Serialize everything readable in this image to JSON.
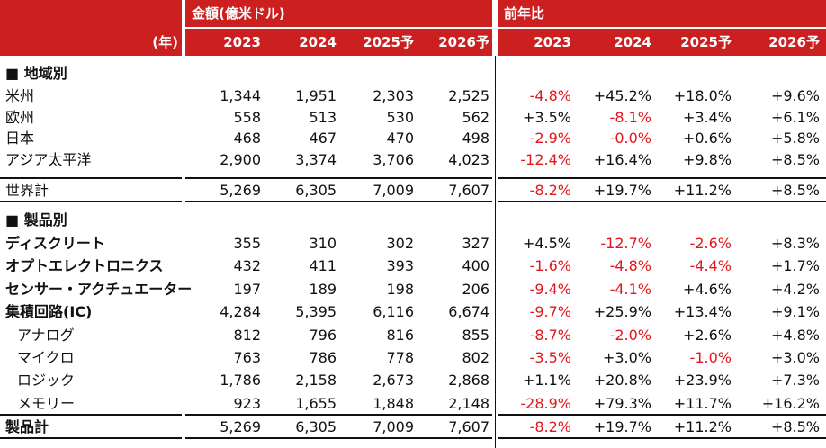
{
  "header": {
    "amount_group": "金額(億米ドル)",
    "yoy_group": "前年比",
    "year_label": "(年)",
    "amount_years": [
      "2023",
      "2024",
      "2025予",
      "2026予"
    ],
    "yoy_years": [
      "2023",
      "2024",
      "2025予",
      "2026予"
    ]
  },
  "sections": {
    "region": "■ 地域別",
    "product": "■ 製品別"
  },
  "region_rows": [
    {
      "label": "米州",
      "values": [
        "1,344",
        "1,951",
        "2,303",
        "2,525"
      ],
      "yoy": [
        "-4.8%",
        "+45.2%",
        "+18.0%",
        "+9.6%"
      ]
    },
    {
      "label": "欧州",
      "values": [
        "558",
        "513",
        "530",
        "562"
      ],
      "yoy": [
        "+3.5%",
        "-8.1%",
        "+3.4%",
        "+6.1%"
      ]
    },
    {
      "label": "日本",
      "values": [
        "468",
        "467",
        "470",
        "498"
      ],
      "yoy": [
        "-2.9%",
        "-0.0%",
        "+0.6%",
        "+5.8%"
      ]
    },
    {
      "label": "アジア太平洋",
      "values": [
        "2,900",
        "3,374",
        "3,706",
        "4,023"
      ],
      "yoy": [
        "-12.4%",
        "+16.4%",
        "+9.8%",
        "+8.5%"
      ]
    }
  ],
  "region_total": {
    "label": "世界計",
    "values": [
      "5,269",
      "6,305",
      "7,009",
      "7,607"
    ],
    "yoy": [
      "-8.2%",
      "+19.7%",
      "+11.2%",
      "+8.5%"
    ]
  },
  "product_rows": [
    {
      "label": "ディスクリート",
      "style": "bold",
      "values": [
        "355",
        "310",
        "302",
        "327"
      ],
      "yoy": [
        "+4.5%",
        "-12.7%",
        "-2.6%",
        "+8.3%"
      ]
    },
    {
      "label": "オプトエレクトロニクス",
      "style": "bold",
      "values": [
        "432",
        "411",
        "393",
        "400"
      ],
      "yoy": [
        "-1.6%",
        "-4.8%",
        "-4.4%",
        "+1.7%"
      ]
    },
    {
      "label": "センサー・アクチュエーター",
      "style": "bold",
      "values": [
        "197",
        "189",
        "198",
        "206"
      ],
      "yoy": [
        "-9.4%",
        "-4.1%",
        "+4.6%",
        "+4.2%"
      ]
    },
    {
      "label": "集積回路(IC)",
      "style": "bold",
      "values": [
        "4,284",
        "5,395",
        "6,116",
        "6,674"
      ],
      "yoy": [
        "-9.7%",
        "+25.9%",
        "+13.4%",
        "+9.1%"
      ]
    },
    {
      "label": "アナログ",
      "style": "indent",
      "values": [
        "812",
        "796",
        "816",
        "855"
      ],
      "yoy": [
        "-8.7%",
        "-2.0%",
        "+2.6%",
        "+4.8%"
      ]
    },
    {
      "label": "マイクロ",
      "style": "indent",
      "values": [
        "763",
        "786",
        "778",
        "802"
      ],
      "yoy": [
        "-3.5%",
        "+3.0%",
        "-1.0%",
        "+3.0%"
      ]
    },
    {
      "label": "ロジック",
      "style": "indent",
      "values": [
        "1,786",
        "2,158",
        "2,673",
        "2,868"
      ],
      "yoy": [
        "+1.1%",
        "+20.8%",
        "+23.9%",
        "+7.3%"
      ]
    },
    {
      "label": "メモリー",
      "style": "indent",
      "values": [
        "923",
        "1,655",
        "1,848",
        "2,148"
      ],
      "yoy": [
        "-28.9%",
        "+79.3%",
        "+11.7%",
        "+16.2%"
      ]
    }
  ],
  "product_total": {
    "label": "製品計",
    "style": "bold",
    "values": [
      "5,269",
      "6,305",
      "7,009",
      "7,607"
    ],
    "yoy": [
      "-8.2%",
      "+19.7%",
      "+11.2%",
      "+8.5%"
    ]
  },
  "colors": {
    "header_bg": "#cc1f1f",
    "negative": "#e3161d",
    "text": "#111111"
  }
}
